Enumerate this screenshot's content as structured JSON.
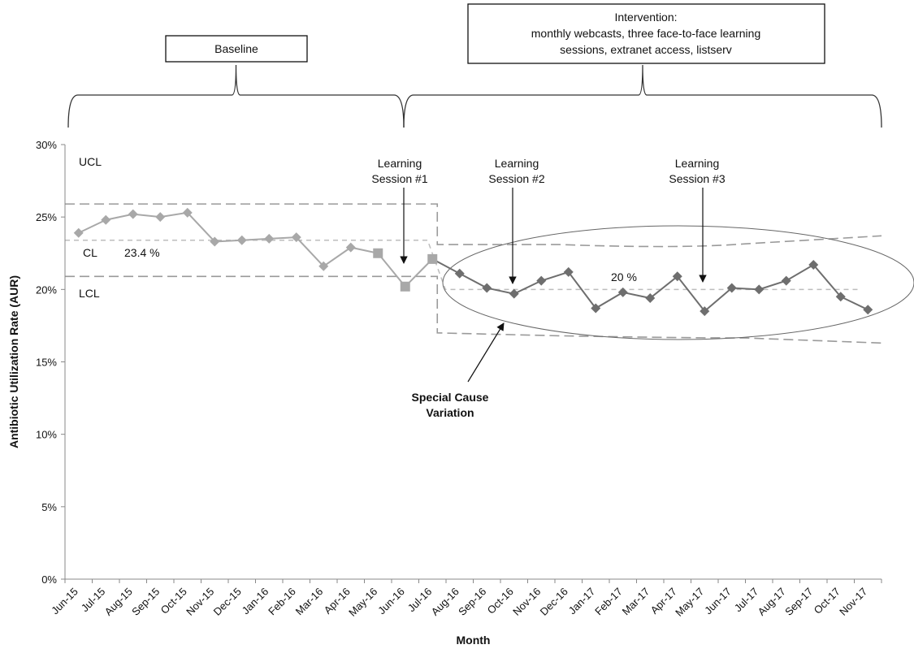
{
  "chart_data": {
    "type": "line",
    "ylabel": "Antibiotic Utilization Rate (AUR)",
    "xlabel": "Month",
    "y_ticks": [
      "0%",
      "5%",
      "10%",
      "15%",
      "20%",
      "25%",
      "30%"
    ],
    "ylim": [
      0,
      30
    ],
    "categories": [
      "Jun-15",
      "Jul-15",
      "Aug-15",
      "Sep-15",
      "Oct-15",
      "Nov-15",
      "Dec-15",
      "Jan-16",
      "Feb-16",
      "Mar-16",
      "Apr-16",
      "May-16",
      "Jun-16",
      "Jul-16",
      "Aug-16",
      "Sep-16",
      "Oct-16",
      "Nov-16",
      "Dec-16",
      "Jan-17",
      "Feb-17",
      "Mar-17",
      "Apr-17",
      "May-17",
      "Jun-17",
      "Jul-17",
      "Aug-17",
      "Sep-17",
      "Oct-17",
      "Nov-17"
    ],
    "baseline_values": [
      23.9,
      24.8,
      25.2,
      25.0,
      25.3,
      23.3,
      23.4,
      23.5,
      23.6,
      21.6,
      22.9,
      22.5,
      20.2,
      22.1
    ],
    "intervention_values": [
      22.1,
      21.1,
      20.1,
      19.7,
      20.6,
      21.2,
      18.7,
      19.8,
      19.4,
      20.9,
      18.5,
      20.1,
      20.0,
      20.6,
      21.7,
      19.5,
      18.6
    ],
    "intervention_start_index": 13,
    "square_marker_indices": [
      11,
      12,
      13
    ],
    "control_limits": {
      "baseline": {
        "ucl": 25.9,
        "cl": 23.4,
        "lcl": 20.9
      },
      "intervention": {
        "ucl_start": 23.1,
        "ucl_end": 23.7,
        "cl": 20.0,
        "lcl_start": 17.0,
        "lcl_end": 16.3
      }
    },
    "line_labels": {
      "ucl": "UCL",
      "cl": "CL",
      "lcl": "LCL"
    },
    "cl_baseline_value_label": "23.4 %",
    "cl_intervention_value_label": "20 %",
    "annotations": {
      "learning_session_1": [
        "Learning",
        "Session #1"
      ],
      "learning_session_2": [
        "Learning",
        "Session #2"
      ],
      "learning_session_3": [
        "Learning",
        "Session #3"
      ],
      "special_cause": [
        "Special Cause",
        "Variation"
      ]
    },
    "phases": {
      "baseline_label": "Baseline",
      "intervention_label": [
        "Intervention:",
        "monthly webcasts, three face-to-face learning",
        "sessions, extranet access, listserv"
      ]
    },
    "colors": {
      "baseline_series": "#a8a8a8",
      "intervention_series": "#6e6e6e",
      "limit_line": "#9a9a9a",
      "center_line": "#bdbdbd"
    }
  }
}
